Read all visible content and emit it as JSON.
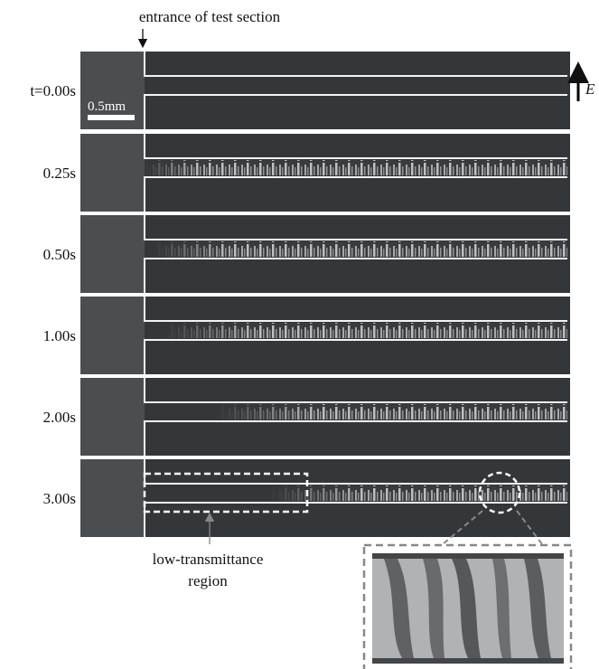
{
  "header": {
    "annotation": "entrance of test section"
  },
  "panels": [
    {
      "time": "t=0.00s"
    },
    {
      "time": "0.25s"
    },
    {
      "time": "0.50s"
    },
    {
      "time": "1.00s"
    },
    {
      "time": "2.00s"
    },
    {
      "time": "3.00s"
    }
  ],
  "scale_bar": "0.5mm",
  "field_label": "E",
  "region_label": [
    "low-transmittance",
    "region"
  ]
}
